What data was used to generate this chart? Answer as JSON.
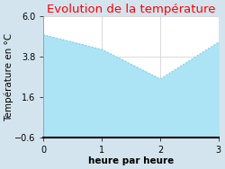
{
  "title": "Evolution de la température",
  "xlabel": "heure par heure",
  "ylabel": "Température en °C",
  "x": [
    0,
    1,
    2,
    3
  ],
  "y": [
    5.0,
    4.2,
    2.6,
    4.6
  ],
  "ylim": [
    -0.6,
    6.0
  ],
  "xlim": [
    0,
    3
  ],
  "yticks": [
    -0.6,
    1.6,
    3.8,
    6.0
  ],
  "xticks": [
    0,
    1,
    2,
    3
  ],
  "line_color": "#7ECFE8",
  "fill_color": "#ADE4F5",
  "title_color": "#FF0000",
  "bg_color": "#D4E4EE",
  "plot_bg_color": "#FFFFFF",
  "title_fontsize": 9.5,
  "label_fontsize": 7.5,
  "tick_fontsize": 7
}
